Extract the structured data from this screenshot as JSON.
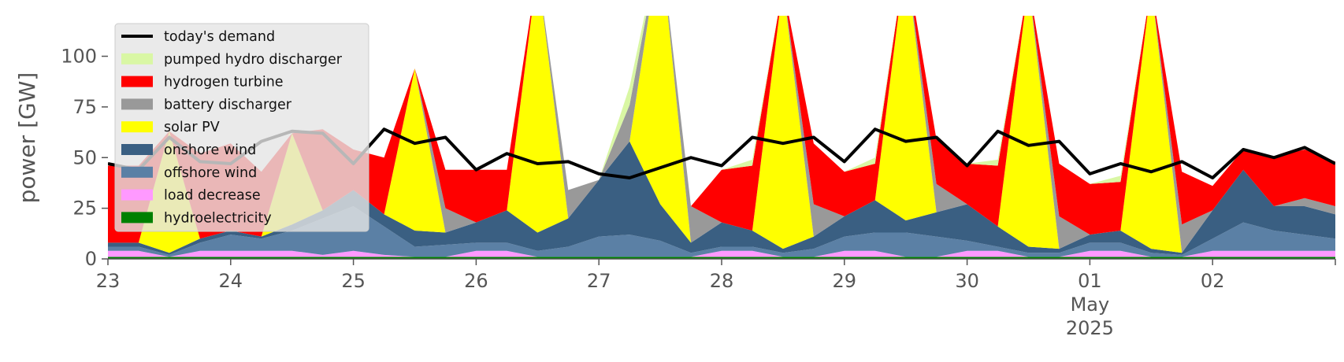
{
  "chart_data": {
    "type": "area",
    "ylabel": "power [GW]",
    "xlabel": "",
    "title": "",
    "ylim": [
      0,
      120
    ],
    "xlim": [
      "2025-04-23T00:00",
      "2025-05-03T00:00"
    ],
    "y_ticks": [
      0,
      25,
      50,
      75,
      100
    ],
    "x_ticks": [
      {
        "t": "2025-04-23T00:00",
        "label": "23"
      },
      {
        "t": "2025-04-24T00:00",
        "label": "24"
      },
      {
        "t": "2025-04-25T00:00",
        "label": "25"
      },
      {
        "t": "2025-04-26T00:00",
        "label": "26"
      },
      {
        "t": "2025-04-27T00:00",
        "label": "27"
      },
      {
        "t": "2025-04-28T00:00",
        "label": "28"
      },
      {
        "t": "2025-04-29T00:00",
        "label": "29"
      },
      {
        "t": "2025-04-30T00:00",
        "label": "30"
      },
      {
        "t": "2025-05-01T00:00",
        "label": "01"
      },
      {
        "t": "2025-05-02T00:00",
        "label": "02"
      }
    ],
    "x_sublabels": [
      "May",
      "2025"
    ],
    "grid": false,
    "legend": "top-left",
    "x": [
      "2025-04-23T00:00",
      "2025-04-23T06:00",
      "2025-04-23T12:00",
      "2025-04-23T18:00",
      "2025-04-24T00:00",
      "2025-04-24T06:00",
      "2025-04-24T12:00",
      "2025-04-24T18:00",
      "2025-04-25T00:00",
      "2025-04-25T06:00",
      "2025-04-25T12:00",
      "2025-04-25T18:00",
      "2025-04-26T00:00",
      "2025-04-26T06:00",
      "2025-04-26T12:00",
      "2025-04-26T18:00",
      "2025-04-27T00:00",
      "2025-04-27T06:00",
      "2025-04-27T12:00",
      "2025-04-27T18:00",
      "2025-04-28T00:00",
      "2025-04-28T06:00",
      "2025-04-28T12:00",
      "2025-04-28T18:00",
      "2025-04-29T00:00",
      "2025-04-29T06:00",
      "2025-04-29T12:00",
      "2025-04-29T18:00",
      "2025-04-30T00:00",
      "2025-04-30T06:00",
      "2025-04-30T12:00",
      "2025-04-30T18:00",
      "2025-05-01T00:00",
      "2025-05-01T06:00",
      "2025-05-01T12:00",
      "2025-05-01T18:00",
      "2025-05-02T00:00",
      "2025-05-02T06:00",
      "2025-05-02T12:00",
      "2025-05-02T18:00",
      "2025-05-03T00:00"
    ],
    "series": [
      {
        "name": "hydroelectricity",
        "color": "#008000",
        "values": [
          1,
          1,
          1,
          1,
          1,
          1,
          1,
          1,
          1,
          1,
          1,
          1,
          1,
          1,
          1,
          1,
          1,
          1,
          1,
          1,
          1,
          1,
          1,
          1,
          1,
          1,
          1,
          1,
          1,
          1,
          1,
          1,
          1,
          1,
          1,
          1,
          1,
          1,
          1,
          1,
          1
        ]
      },
      {
        "name": "load decrease",
        "color": "#ff99ff",
        "values": [
          3,
          3,
          0,
          3,
          3,
          3,
          3,
          1,
          3,
          1,
          0,
          0,
          3,
          3,
          0,
          0,
          0,
          0,
          0,
          0,
          3,
          3,
          0,
          0,
          3,
          3,
          0,
          0,
          3,
          3,
          0,
          0,
          3,
          3,
          0,
          0,
          3,
          3,
          3,
          3,
          3
        ]
      },
      {
        "name": "offshore wind",
        "color": "#5b80a5",
        "values": [
          2,
          2,
          1,
          4,
          8,
          6,
          10,
          18,
          22,
          14,
          5,
          6,
          4,
          4,
          3,
          5,
          10,
          11,
          8,
          2,
          2,
          2,
          2,
          4,
          7,
          9,
          12,
          10,
          5,
          2,
          2,
          2,
          4,
          4,
          2,
          1,
          6,
          14,
          10,
          8,
          6
        ]
      },
      {
        "name": "onshore wind",
        "color": "#3a5f82",
        "values": [
          2,
          2,
          1,
          2,
          2,
          1,
          3,
          4,
          8,
          6,
          8,
          6,
          10,
          16,
          9,
          14,
          28,
          46,
          18,
          5,
          12,
          8,
          2,
          6,
          10,
          16,
          6,
          12,
          18,
          10,
          3,
          2,
          4,
          6,
          2,
          1,
          14,
          26,
          12,
          14,
          12
        ]
      },
      {
        "name": "solar PV",
        "color": "#ffff00",
        "values": [
          0,
          0,
          60,
          0,
          0,
          0,
          45,
          0,
          0,
          0,
          80,
          0,
          0,
          0,
          130,
          0,
          0,
          0,
          130,
          0,
          0,
          0,
          130,
          0,
          0,
          0,
          130,
          0,
          0,
          0,
          130,
          0,
          0,
          0,
          130,
          0,
          0,
          0,
          0,
          0,
          0
        ]
      },
      {
        "name": "battery discharger",
        "color": "#999999",
        "values": [
          0,
          0,
          0,
          0,
          0,
          0,
          0,
          0,
          0,
          0,
          0,
          12,
          0,
          0,
          0,
          14,
          0,
          18,
          0,
          18,
          0,
          0,
          0,
          16,
          0,
          0,
          0,
          14,
          0,
          0,
          0,
          16,
          0,
          0,
          0,
          14,
          0,
          0,
          0,
          4,
          4
        ]
      },
      {
        "name": "hydrogen turbine",
        "color": "#ff0000",
        "values": [
          38,
          38,
          0,
          42,
          43,
          32,
          0,
          40,
          20,
          28,
          0,
          19,
          26,
          20,
          0,
          0,
          0,
          0,
          0,
          0,
          26,
          32,
          0,
          30,
          22,
          18,
          0,
          22,
          20,
          30,
          0,
          26,
          25,
          24,
          0,
          26,
          12,
          10,
          24,
          24,
          22
        ]
      },
      {
        "name": "pumped hydro discharger",
        "color": "#d9f7a4",
        "values": [
          0,
          0,
          0,
          0,
          0,
          0,
          0,
          0,
          0,
          0,
          0,
          0,
          0,
          0,
          0,
          0,
          0,
          9,
          0,
          0,
          0,
          3,
          0,
          0,
          0,
          3,
          0,
          0,
          0,
          3,
          0,
          0,
          0,
          3,
          0,
          0,
          0,
          0,
          0,
          0,
          0
        ]
      }
    ],
    "demand": {
      "name": "today's demand",
      "color": "#000000",
      "values": [
        47,
        44,
        60,
        48,
        47,
        58,
        63,
        62,
        47,
        64,
        57,
        60,
        44,
        52,
        47,
        48,
        42,
        40,
        45,
        50,
        46,
        60,
        57,
        60,
        48,
        64,
        58,
        60,
        46,
        63,
        56,
        58,
        42,
        47,
        43,
        48,
        40,
        54,
        50,
        55,
        47
      ]
    },
    "legend_items": [
      {
        "label": "today's demand",
        "color": "#000000",
        "kind": "line"
      },
      {
        "label": "pumped hydro discharger",
        "color": "#d9f7a4",
        "kind": "patch"
      },
      {
        "label": "hydrogen turbine",
        "color": "#ff0000",
        "kind": "patch"
      },
      {
        "label": "battery discharger",
        "color": "#999999",
        "kind": "patch"
      },
      {
        "label": "solar PV",
        "color": "#ffff00",
        "kind": "patch"
      },
      {
        "label": "onshore wind",
        "color": "#3a5f82",
        "kind": "patch"
      },
      {
        "label": "offshore wind",
        "color": "#5b80a5",
        "kind": "patch"
      },
      {
        "label": "load decrease",
        "color": "#ff99ff",
        "kind": "patch"
      },
      {
        "label": "hydroelectricity",
        "color": "#008000",
        "kind": "patch"
      }
    ]
  }
}
